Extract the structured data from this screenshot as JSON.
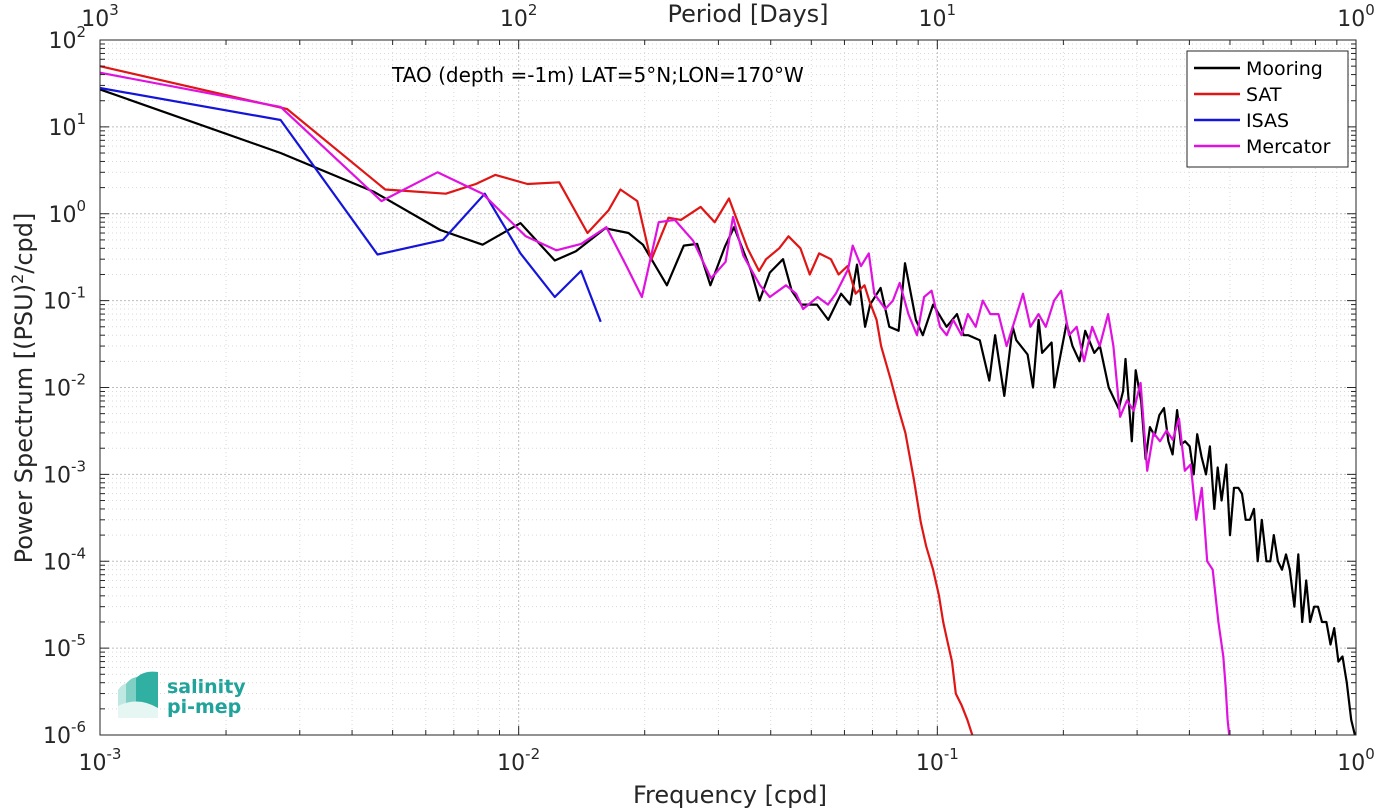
{
  "chart_data": {
    "type": "line",
    "annotation": "TAO (depth =-1m) LAT=5°N;LON=170°W",
    "xlabel": "Frequency [cpd]",
    "ylabel": "Power Spectrum [(PSU)²/cpd]",
    "ylabel_parts": {
      "before": "Power Spectrum [(PSU)",
      "sup": "2",
      "after": "/cpd]"
    },
    "top_xlabel": "Period [Days]",
    "x_scale": "log",
    "y_scale": "log",
    "xlim": [
      0.001,
      1
    ],
    "ylim": [
      1e-06,
      100
    ],
    "grid": true,
    "minor_grid": true,
    "legend_position": "top-right",
    "x_ticks": [
      {
        "value": 0.001,
        "base": "10",
        "exp": "-3"
      },
      {
        "value": 0.01,
        "base": "10",
        "exp": "-2"
      },
      {
        "value": 0.1,
        "base": "10",
        "exp": "-1"
      },
      {
        "value": 1,
        "base": "10",
        "exp": "0"
      }
    ],
    "y_ticks": [
      {
        "value": 1e-06,
        "base": "10",
        "exp": "-6"
      },
      {
        "value": 1e-05,
        "base": "10",
        "exp": "-5"
      },
      {
        "value": 0.0001,
        "base": "10",
        "exp": "-4"
      },
      {
        "value": 0.001,
        "base": "10",
        "exp": "-3"
      },
      {
        "value": 0.01,
        "base": "10",
        "exp": "-2"
      },
      {
        "value": 0.1,
        "base": "10",
        "exp": "-1"
      },
      {
        "value": 1,
        "base": "10",
        "exp": "0"
      },
      {
        "value": 10,
        "base": "10",
        "exp": "1"
      },
      {
        "value": 100,
        "base": "10",
        "exp": "2"
      }
    ],
    "top_ticks": [
      {
        "freq": 0.001,
        "base": "10",
        "exp": "3"
      },
      {
        "freq": 0.01,
        "base": "10",
        "exp": "2"
      },
      {
        "freq": 0.1,
        "base": "10",
        "exp": "1"
      },
      {
        "freq": 1,
        "base": "10",
        "exp": "0"
      }
    ],
    "series": [
      {
        "name": "Mooring",
        "color": "#000000",
        "points": [
          [
            0.001,
            27
          ],
          [
            0.0027,
            5
          ],
          [
            0.0045,
            1.8
          ],
          [
            0.0065,
            0.65
          ],
          [
            0.0082,
            0.44
          ],
          [
            0.0101,
            0.78
          ],
          [
            0.0122,
            0.29
          ],
          [
            0.0137,
            0.37
          ],
          [
            0.0161,
            0.68
          ],
          [
            0.0183,
            0.6
          ],
          [
            0.0198,
            0.44
          ],
          [
            0.0226,
            0.15
          ],
          [
            0.0248,
            0.43
          ],
          [
            0.0267,
            0.45
          ],
          [
            0.0287,
            0.15
          ],
          [
            0.0311,
            0.42
          ],
          [
            0.0327,
            0.7
          ],
          [
            0.0359,
            0.22
          ],
          [
            0.0376,
            0.1
          ],
          [
            0.0398,
            0.21
          ],
          [
            0.0428,
            0.3
          ],
          [
            0.0449,
            0.13
          ],
          [
            0.0473,
            0.09
          ],
          [
            0.0516,
            0.09
          ],
          [
            0.0549,
            0.06
          ],
          [
            0.0589,
            0.12
          ],
          [
            0.0619,
            0.09
          ],
          [
            0.0643,
            0.26
          ],
          [
            0.0672,
            0.05
          ],
          [
            0.0691,
            0.09
          ],
          [
            0.0732,
            0.14
          ],
          [
            0.0768,
            0.05
          ],
          [
            0.0808,
            0.045
          ],
          [
            0.0837,
            0.27
          ],
          [
            0.0889,
            0.06
          ],
          [
            0.0923,
            0.04
          ],
          [
            0.0977,
            0.09
          ],
          [
            0.1052,
            0.05
          ],
          [
            0.1114,
            0.07
          ],
          [
            0.1156,
            0.04
          ],
          [
            0.1186,
            0.04
          ],
          [
            0.1263,
            0.035
          ],
          [
            0.1331,
            0.012
          ],
          [
            0.1374,
            0.04
          ],
          [
            0.1445,
            0.008
          ],
          [
            0.1514,
            0.05
          ],
          [
            0.1544,
            0.035
          ],
          [
            0.1643,
            0.024
          ],
          [
            0.1692,
            0.01
          ],
          [
            0.1745,
            0.06
          ],
          [
            0.1779,
            0.025
          ],
          [
            0.1875,
            0.033
          ],
          [
            0.1903,
            0.01
          ],
          [
            0.2036,
            0.055
          ],
          [
            0.2103,
            0.03
          ],
          [
            0.2186,
            0.02
          ],
          [
            0.2255,
            0.045
          ],
          [
            0.2371,
            0.025
          ],
          [
            0.2445,
            0.03
          ],
          [
            0.2567,
            0.01
          ],
          [
            0.2711,
            0.0057
          ],
          [
            0.2778,
            0.0091
          ],
          [
            0.2815,
            0.0213
          ],
          [
            0.2914,
            0.0024
          ],
          [
            0.2977,
            0.0158
          ],
          [
            0.3068,
            0.0069
          ],
          [
            0.3144,
            0.0015
          ],
          [
            0.3219,
            0.0035
          ],
          [
            0.3303,
            0.0028
          ],
          [
            0.3389,
            0.0048
          ],
          [
            0.3478,
            0.0058
          ],
          [
            0.3564,
            0.0024
          ],
          [
            0.3648,
            0.0017
          ],
          [
            0.3738,
            0.0055
          ],
          [
            0.3819,
            0.0022
          ],
          [
            0.3904,
            0.0024
          ],
          [
            0.4006,
            0.0021
          ],
          [
            0.4096,
            0.001
          ],
          [
            0.4176,
            0.0029
          ],
          [
            0.4275,
            0.0016
          ],
          [
            0.4382,
            0.001
          ],
          [
            0.4477,
            0.0021
          ],
          [
            0.4586,
            0.0004
          ],
          [
            0.4673,
            0.0012
          ],
          [
            0.4775,
            0.0005
          ],
          [
            0.4901,
            0.0013
          ],
          [
            0.5002,
            0.0002
          ],
          [
            0.5113,
            0.0007
          ],
          [
            0.5233,
            0.0007
          ],
          [
            0.5341,
            0.0006
          ],
          [
            0.5451,
            0.0003
          ],
          [
            0.5579,
            0.0003
          ],
          [
            0.5707,
            0.0004
          ],
          [
            0.5824,
            0.0001
          ],
          [
            0.5955,
            0.0003
          ],
          [
            0.6108,
            0.0001
          ],
          [
            0.6241,
            0.0001
          ],
          [
            0.6364,
            0.0002
          ],
          [
            0.6509,
            0.0001
          ],
          [
            0.6656,
            8e-05
          ],
          [
            0.6804,
            0.00012
          ],
          [
            0.6949,
            8e-05
          ],
          [
            0.7127,
            3e-05
          ],
          [
            0.7281,
            0.00012
          ],
          [
            0.7437,
            2e-05
          ],
          [
            0.7606,
            6e-05
          ],
          [
            0.777,
            2e-05
          ],
          [
            0.794,
            3e-05
          ],
          [
            0.8115,
            3e-05
          ],
          [
            0.8293,
            2e-05
          ],
          [
            0.8499,
            2e-05
          ],
          [
            0.8691,
            1.1e-05
          ],
          [
            0.8871,
            1.7e-05
          ],
          [
            0.9079,
            7e-06
          ],
          [
            0.9282,
            8e-06
          ],
          [
            0.9509,
            4e-06
          ],
          [
            0.974,
            1.5e-06
          ],
          [
            0.9939,
            1e-06
          ]
        ]
      },
      {
        "name": "SAT",
        "color": "#e01515",
        "points": [
          [
            0.001,
            50
          ],
          [
            0.0028,
            16
          ],
          [
            0.0048,
            1.9
          ],
          [
            0.0067,
            1.7
          ],
          [
            0.0079,
            2.2
          ],
          [
            0.0088,
            2.8
          ],
          [
            0.0105,
            2.2
          ],
          [
            0.0125,
            2.3
          ],
          [
            0.0146,
            0.6
          ],
          [
            0.0164,
            1.1
          ],
          [
            0.0175,
            1.9
          ],
          [
            0.0192,
            1.4
          ],
          [
            0.0207,
            0.29
          ],
          [
            0.0228,
            0.9
          ],
          [
            0.0244,
            0.85
          ],
          [
            0.0272,
            1.2
          ],
          [
            0.0294,
            0.8
          ],
          [
            0.0318,
            1.5
          ],
          [
            0.0352,
            0.4
          ],
          [
            0.0375,
            0.22
          ],
          [
            0.039,
            0.3
          ],
          [
            0.0419,
            0.4
          ],
          [
            0.0441,
            0.55
          ],
          [
            0.0471,
            0.4
          ],
          [
            0.0496,
            0.2
          ],
          [
            0.0522,
            0.35
          ],
          [
            0.0557,
            0.3
          ],
          [
            0.0581,
            0.2
          ],
          [
            0.061,
            0.25
          ],
          [
            0.0638,
            0.12
          ],
          [
            0.067,
            0.15
          ],
          [
            0.0688,
            0.1
          ],
          [
            0.0716,
            0.06
          ],
          [
            0.0734,
            0.03
          ],
          [
            0.0775,
            0.012
          ],
          [
            0.0805,
            0.006
          ],
          [
            0.0839,
            0.003
          ],
          [
            0.0878,
            0.0009
          ],
          [
            0.0913,
            0.00028
          ],
          [
            0.094,
            0.00015
          ],
          [
            0.0977,
            8e-05
          ],
          [
            0.1009,
            4e-05
          ],
          [
            0.1033,
            2e-05
          ],
          [
            0.1057,
            1.2e-05
          ],
          [
            0.1084,
            7e-06
          ],
          [
            0.1107,
            3e-06
          ],
          [
            0.1143,
            2.2e-06
          ],
          [
            0.1179,
            1.5e-06
          ],
          [
            0.1212,
            1e-06
          ]
        ]
      },
      {
        "name": "ISAS",
        "color": "#1515d9",
        "points": [
          [
            0.001,
            28
          ],
          [
            0.0027,
            12
          ],
          [
            0.0046,
            0.34
          ],
          [
            0.0066,
            0.5
          ],
          [
            0.0083,
            1.7
          ],
          [
            0.0101,
            0.35
          ],
          [
            0.0122,
            0.11
          ],
          [
            0.0141,
            0.22
          ],
          [
            0.0157,
            0.057
          ]
        ]
      },
      {
        "name": "Mercator",
        "color": "#e012e0",
        "points": [
          [
            0.001,
            42
          ],
          [
            0.0027,
            17
          ],
          [
            0.0047,
            1.4
          ],
          [
            0.0064,
            3
          ],
          [
            0.0082,
            1.7
          ],
          [
            0.0104,
            0.55
          ],
          [
            0.0123,
            0.38
          ],
          [
            0.0141,
            0.45
          ],
          [
            0.0162,
            0.7
          ],
          [
            0.0181,
            0.25
          ],
          [
            0.0197,
            0.11
          ],
          [
            0.0216,
            0.8
          ],
          [
            0.0236,
            0.85
          ],
          [
            0.0261,
            0.49
          ],
          [
            0.0288,
            0.18
          ],
          [
            0.0312,
            0.28
          ],
          [
            0.0325,
            0.92
          ],
          [
            0.0344,
            0.33
          ],
          [
            0.0377,
            0.15
          ],
          [
            0.0398,
            0.11
          ],
          [
            0.0435,
            0.15
          ],
          [
            0.046,
            0.12
          ],
          [
            0.0478,
            0.08
          ],
          [
            0.0518,
            0.11
          ],
          [
            0.0548,
            0.09
          ],
          [
            0.0572,
            0.12
          ],
          [
            0.0612,
            0.23
          ],
          [
            0.0628,
            0.43
          ],
          [
            0.0657,
            0.25
          ],
          [
            0.0686,
            0.35
          ],
          [
            0.0707,
            0.12
          ],
          [
            0.0751,
            0.08
          ],
          [
            0.0783,
            0.1
          ],
          [
            0.0813,
            0.16
          ],
          [
            0.0853,
            0.07
          ],
          [
            0.0894,
            0.04
          ],
          [
            0.093,
            0.11
          ],
          [
            0.0969,
            0.13
          ],
          [
            0.1015,
            0.05
          ],
          [
            0.1053,
            0.04
          ],
          [
            0.1091,
            0.06
          ],
          [
            0.1143,
            0.04
          ],
          [
            0.1183,
            0.07
          ],
          [
            0.1235,
            0.05
          ],
          [
            0.1284,
            0.1
          ],
          [
            0.1338,
            0.07
          ],
          [
            0.14,
            0.07
          ],
          [
            0.1464,
            0.03
          ],
          [
            0.1532,
            0.06
          ],
          [
            0.1602,
            0.12
          ],
          [
            0.1668,
            0.05
          ],
          [
            0.1744,
            0.07
          ],
          [
            0.1816,
            0.05
          ],
          [
            0.1901,
            0.1
          ],
          [
            0.1975,
            0.13
          ],
          [
            0.2063,
            0.04
          ],
          [
            0.2152,
            0.05
          ],
          [
            0.2242,
            0.02
          ],
          [
            0.2344,
            0.05
          ],
          [
            0.2442,
            0.03
          ],
          [
            0.2558,
            0.07
          ],
          [
            0.2634,
            0.03
          ],
          [
            0.2733,
            0.0046
          ],
          [
            0.2838,
            0.0071
          ],
          [
            0.2945,
            0.0054
          ],
          [
            0.3059,
            0.0113
          ],
          [
            0.3171,
            0.0011
          ],
          [
            0.3283,
            0.003
          ],
          [
            0.3403,
            0.0024
          ],
          [
            0.3529,
            0.0032
          ],
          [
            0.3649,
            0.0025
          ],
          [
            0.3778,
            0.0044
          ],
          [
            0.3901,
            0.0011
          ],
          [
            0.4029,
            0.0013
          ],
          [
            0.4155,
            0.0003
          ],
          [
            0.4283,
            0.0007
          ],
          [
            0.4412,
            0.0001
          ],
          [
            0.4548,
            8e-05
          ],
          [
            0.4691,
            2e-05
          ],
          [
            0.482,
            8e-06
          ],
          [
            0.4883,
            3.5e-06
          ],
          [
            0.4935,
            1.5e-06
          ],
          [
            0.4979,
            1e-06
          ]
        ]
      }
    ]
  },
  "logo": {
    "line1": "salinity",
    "line2": "pi-mep"
  }
}
